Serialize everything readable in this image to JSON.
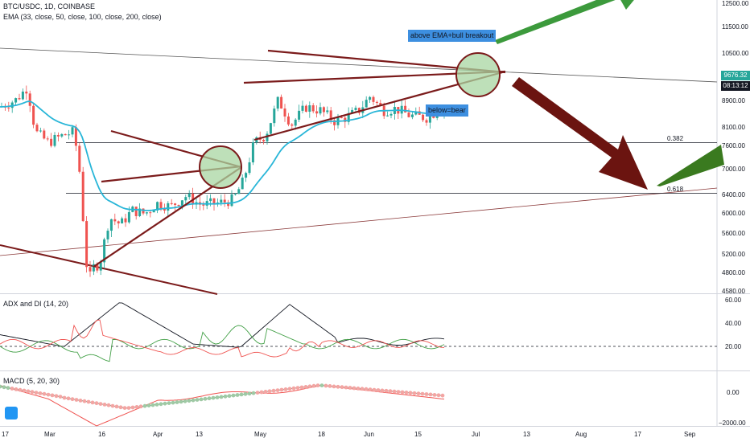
{
  "header": {
    "symbol": "BTC/USDC, 1D, COINBASE",
    "indicator": "EMA (33, close, 50, close, 100, close, 200, close)"
  },
  "annotations": {
    "bull_note": "above EMA+bull breakout",
    "bear_note": "below=bear"
  },
  "current_price": "9676.32",
  "countdown": "08:13:12",
  "fib_levels": [
    {
      "label": "0.382",
      "price": 7700
    },
    {
      "label": "0.618",
      "price": 6450
    }
  ],
  "colors": {
    "up": "#26a69a",
    "down": "#ef5350",
    "ema": "#29b6d8",
    "trendline": "#7b1b1b",
    "bull_arrow": "#3c9a3c",
    "bear_arrow": "#6b1410",
    "circle": "#a8d5a2",
    "adx": "#131722",
    "di_plus": "#43a047",
    "di_minus": "#ef5350"
  },
  "chart_data": [
    {
      "type": "candlestick",
      "title": "BTC/USDC, 1D, COINBASE",
      "x_ticks": [
        "17",
        "Mar",
        "16",
        "Apr",
        "13",
        "May",
        "18",
        "Jun",
        "15",
        "Jul",
        "13",
        "Aug",
        "17",
        "Sep"
      ],
      "y_ticks": [
        12500,
        11500,
        10500,
        9700,
        8900,
        8100,
        7600,
        7000,
        6400,
        6000,
        5600,
        5200,
        4800,
        4580
      ],
      "ylim": [
        4400,
        12700
      ],
      "series": [
        {
          "name": "EMA 33",
          "type": "line"
        },
        {
          "name": "BTC/USDC",
          "type": "candlestick"
        }
      ],
      "shape": "price rises from ~9600 late Feb to ~10200 early Mar, crashes to ~4600 mid-March, recovers to ~7000 in April, rallies to ~9700-10300 in May and consolidates near 9700 through June",
      "last_price": 9676.32
    },
    {
      "type": "line",
      "title": "ADX and DI (14, 20)",
      "y_ticks": [
        60,
        40,
        20
      ],
      "ylim": [
        0,
        62
      ],
      "reference_line": 20,
      "series": [
        {
          "name": "ADX"
        },
        {
          "name": "+DI"
        },
        {
          "name": "-DI"
        }
      ]
    },
    {
      "type": "line",
      "title": "MACD (5, 20, 30)",
      "y_ticks": [
        0,
        -2000
      ],
      "series": [
        {
          "name": "MACD"
        },
        {
          "name": "Signal"
        }
      ]
    }
  ]
}
